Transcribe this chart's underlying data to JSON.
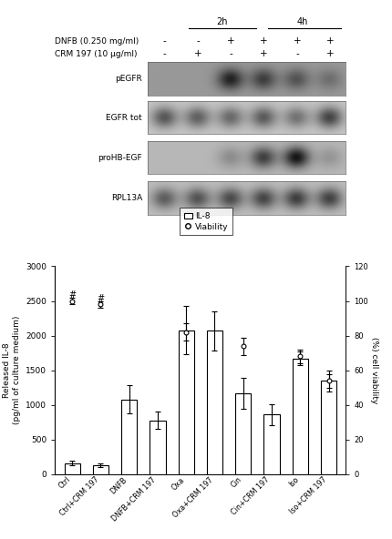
{
  "title_top": {
    "time_labels": [
      "2h",
      "4h"
    ],
    "row1_label": "DNFB (0.250 mg/ml)",
    "row2_label": "CRM 197 (10 µg/ml)",
    "row1_signs": [
      "-",
      "-",
      "+",
      "+",
      "+",
      "+"
    ],
    "row2_signs": [
      "-",
      "+",
      "-",
      "+",
      "-",
      "+"
    ],
    "blot_labels": [
      "pEGFR",
      "EGFR tot",
      "proHB-EGF",
      "RPL13A"
    ]
  },
  "bar_categories": [
    "Ctrl",
    "Ctrl+CRM 197",
    "DNFB",
    "DNFB+CRM 197",
    "Oxa",
    "Oxa+CRM 197",
    "Cin",
    "Cin+CRM 197",
    "Iso",
    "Iso+CRM 197"
  ],
  "bar_values": [
    160,
    130,
    1080,
    780,
    2080,
    2070,
    1170,
    860,
    1670,
    1350
  ],
  "bar_errors": [
    30,
    25,
    200,
    120,
    350,
    280,
    220,
    150,
    100,
    150
  ],
  "viability_values": [
    100,
    98,
    null,
    null,
    82,
    null,
    74,
    null,
    68,
    54
  ],
  "viability_errors": [
    2,
    2,
    null,
    null,
    5,
    null,
    5,
    null,
    4,
    4
  ],
  "ylim_left": [
    0,
    3000
  ],
  "ylim_right": [
    0,
    120
  ],
  "ylabel_left": "Released IL-8\n(pg/ml of culture medium)",
  "ylabel_right": "(%) cell viability",
  "yticks_left": [
    0,
    500,
    1000,
    1500,
    2000,
    2500,
    3000
  ],
  "yticks_right": [
    0,
    20,
    40,
    60,
    80,
    100,
    120
  ],
  "bar_facecolor": "white",
  "bar_edgecolor": "black",
  "bar_linewidth": 0.8,
  "background_color": "white"
}
